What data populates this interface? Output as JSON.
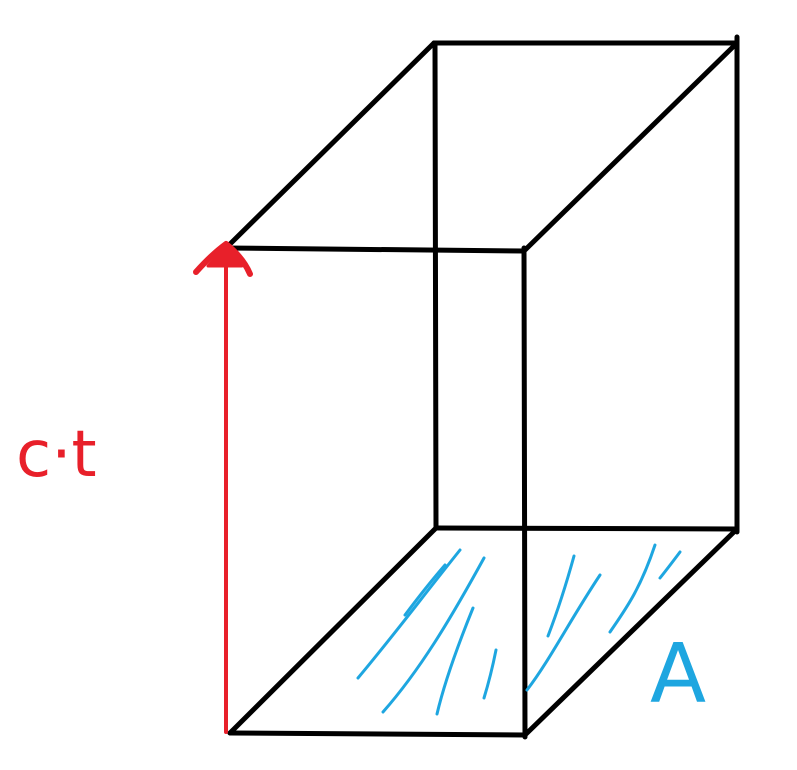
{
  "diagram": {
    "background": "#ffffff",
    "colors": {
      "edges": "#000000",
      "arrow": "#e8202a",
      "hatching": "#1ea6e0"
    },
    "labels": {
      "height": "c·t",
      "area": "A"
    }
  }
}
